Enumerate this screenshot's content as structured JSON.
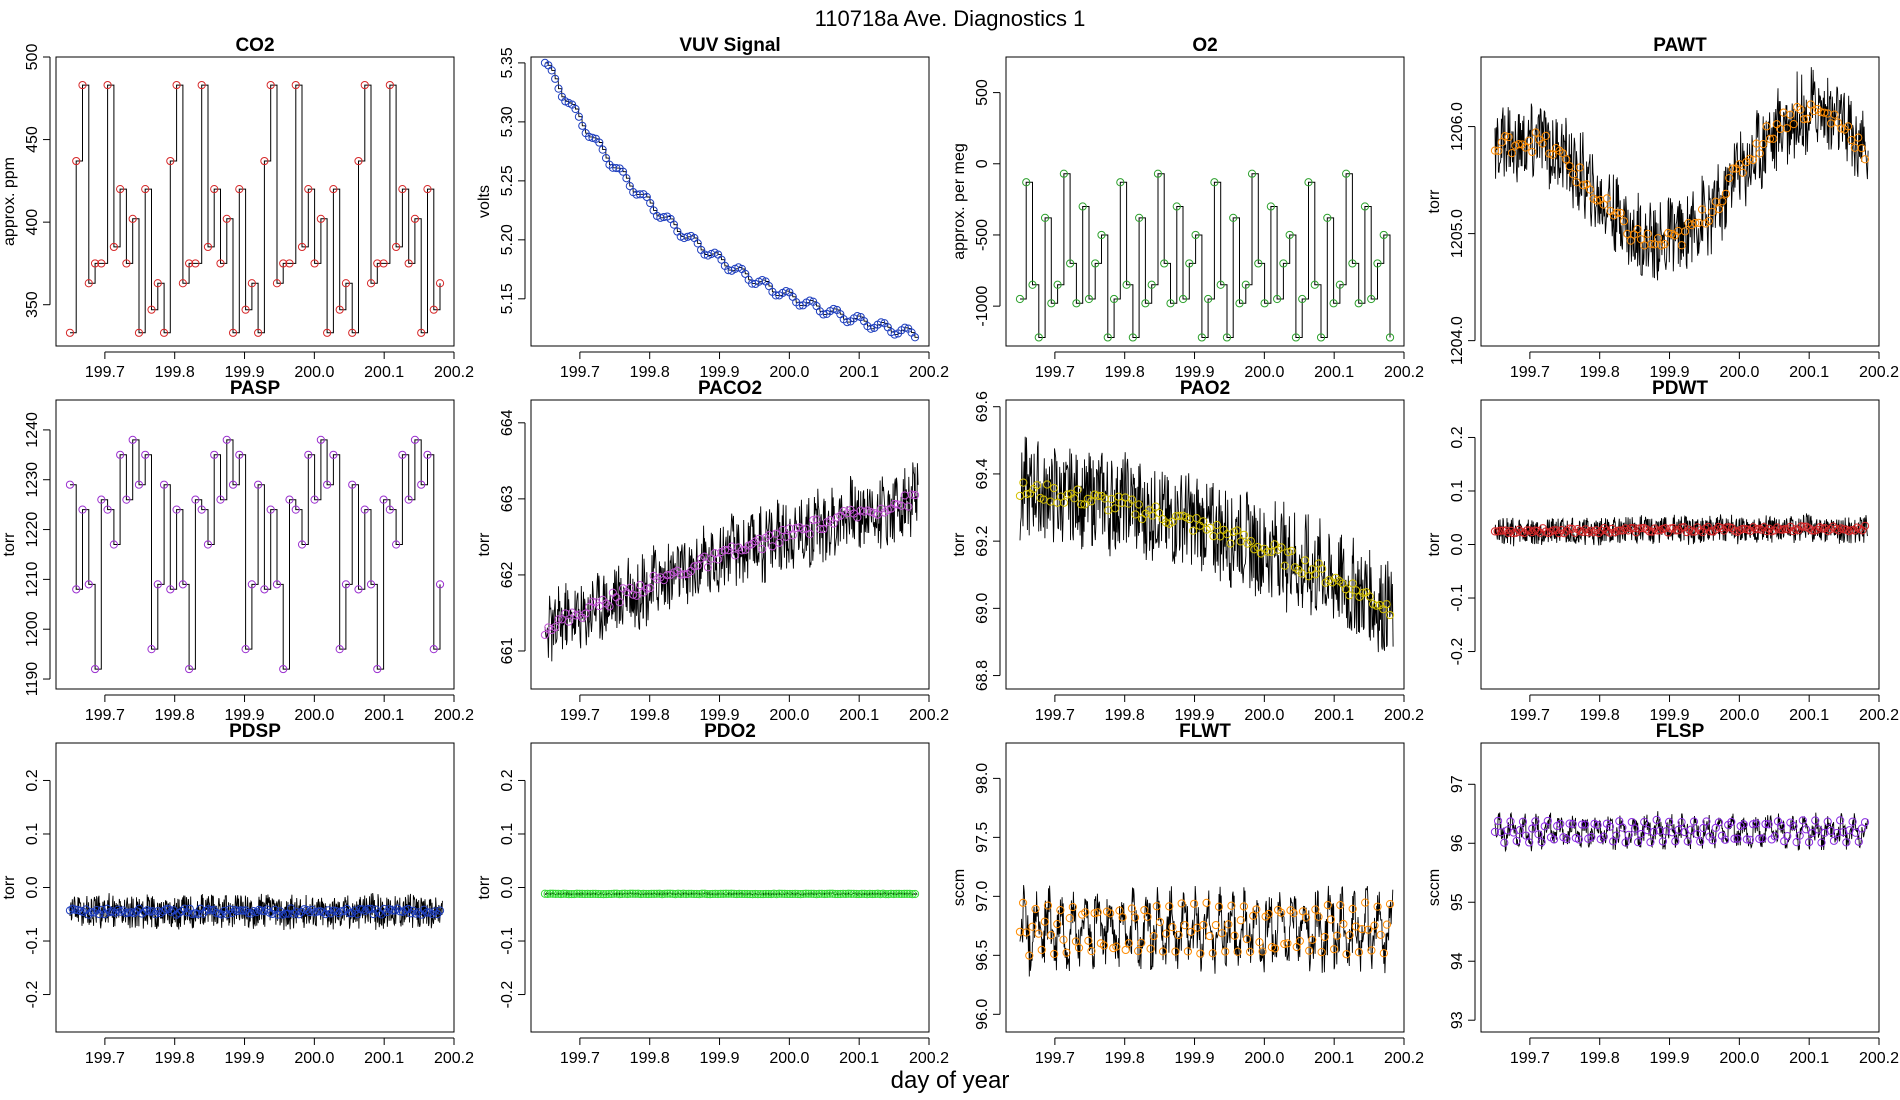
{
  "figure": {
    "main_title": "110718a   Ave. Diagnostics 1",
    "xlabel": "day of year"
  },
  "chart_data": [
    {
      "type": "line",
      "title": "CO2",
      "ylabel": "approx. ppm",
      "xlim": [
        199.63,
        200.2
      ],
      "ylim": [
        325,
        500
      ],
      "yticks": [
        350,
        400,
        450,
        500
      ],
      "ytick_labels": [
        "350",
        "400",
        "450",
        "500"
      ],
      "xticks": [
        199.7,
        199.8,
        199.9,
        200.0,
        200.1,
        200.2
      ],
      "xtick_labels": [
        "199.7",
        "199.8",
        "199.9",
        "200.0",
        "200.1",
        "200.2"
      ],
      "marker_color": "#d62728",
      "pattern": {
        "kind": "steps",
        "levels": [
          333,
          385,
          363,
          402,
          483,
          347,
          375,
          437,
          420,
          375
        ],
        "n": 60
      },
      "series": [
        {
          "name": "CO2",
          "x_start": 199.65,
          "x_end": 200.18
        }
      ]
    },
    {
      "type": "line",
      "title": "VUV Signal",
      "ylabel": "volts",
      "xlim": [
        199.63,
        200.2
      ],
      "ylim": [
        5.11,
        5.355
      ],
      "yticks": [
        5.15,
        5.2,
        5.25,
        5.3,
        5.35
      ],
      "ytick_labels": [
        "5.15",
        "5.20",
        "5.25",
        "5.30",
        "5.35"
      ],
      "xticks": [
        199.7,
        199.8,
        199.9,
        200.0,
        200.1,
        200.2
      ],
      "xtick_labels": [
        "199.7",
        "199.8",
        "199.9",
        "200.0",
        "200.1",
        "200.2"
      ],
      "marker_color": "#1f3fbf",
      "pattern": {
        "kind": "decay",
        "start": 5.35,
        "end": 5.12,
        "rate": 2.2,
        "osc": 0.004,
        "n": 110
      },
      "series": [
        {
          "name": "VUV",
          "x_start": 199.65,
          "x_end": 200.18
        }
      ]
    },
    {
      "type": "line",
      "title": "O2",
      "ylabel": "approx. per meg",
      "xlim": [
        199.63,
        200.2
      ],
      "ylim": [
        -1280,
        750
      ],
      "yticks": [
        -1000,
        -500,
        0,
        500
      ],
      "ytick_labels": [
        "-1000",
        "-500",
        "0",
        "500"
      ],
      "xticks": [
        199.7,
        199.8,
        199.9,
        200.0,
        200.1,
        200.2
      ],
      "xtick_labels": [
        "199.7",
        "199.8",
        "199.9",
        "200.0",
        "200.1",
        "200.2"
      ],
      "marker_color": "#2ca02c",
      "pattern": {
        "kind": "steps",
        "levels": [
          -950,
          -70,
          -1220,
          -300,
          -850,
          -500,
          -980,
          -130,
          -700,
          -380
        ],
        "n": 60
      },
      "series": [
        {
          "name": "O2",
          "x_start": 199.65,
          "x_end": 200.18
        }
      ]
    },
    {
      "type": "line",
      "title": "PAWT",
      "ylabel": "torr",
      "xlim": [
        199.63,
        200.2
      ],
      "ylim": [
        1203.95,
        1206.65
      ],
      "yticks": [
        1204.0,
        1205.0,
        1206.0
      ],
      "ytick_labels": [
        "1204.0",
        "1205.0",
        "1206.0"
      ],
      "xticks": [
        199.7,
        199.8,
        199.9,
        200.0,
        200.1,
        200.2
      ],
      "xtick_labels": [
        "199.7",
        "199.8",
        "199.9",
        "200.0",
        "200.1",
        "200.2"
      ],
      "marker_color": "#ff8c00",
      "pattern": {
        "kind": "wave",
        "base": 1205.3,
        "amp": 0.55,
        "freq": 1.3,
        "phase": 1.0,
        "trend": 0.35,
        "noise": 0.35,
        "n": 110
      },
      "series": [
        {
          "name": "PAWT",
          "x_start": 199.65,
          "x_end": 200.18
        }
      ]
    },
    {
      "type": "line",
      "title": "PASP",
      "ylabel": "torr",
      "xlim": [
        199.63,
        200.2
      ],
      "ylim": [
        1188,
        1246
      ],
      "yticks": [
        1190,
        1200,
        1210,
        1220,
        1230,
        1240
      ],
      "ytick_labels": [
        "1190",
        "1200",
        "1210",
        "1220",
        "1230",
        "1240"
      ],
      "xticks": [
        199.7,
        199.8,
        199.9,
        200.0,
        200.1,
        200.2
      ],
      "xtick_labels": [
        "199.7",
        "199.8",
        "199.9",
        "200.0",
        "200.1",
        "200.2"
      ],
      "marker_color": "#9b30d0",
      "pattern": {
        "kind": "steps",
        "levels": [
          1229,
          1217,
          1209,
          1238,
          1224,
          1196,
          1226,
          1208,
          1235,
          1192
        ],
        "n": 60
      },
      "series": [
        {
          "name": "PASP",
          "x_start": 199.65,
          "x_end": 200.18
        }
      ]
    },
    {
      "type": "line",
      "title": "PACO2",
      "ylabel": "torr",
      "xlim": [
        199.63,
        200.2
      ],
      "ylim": [
        660.5,
        664.3
      ],
      "yticks": [
        661,
        662,
        663,
        664
      ],
      "ytick_labels": [
        "661",
        "662",
        "663",
        "664"
      ],
      "xticks": [
        199.7,
        199.8,
        199.9,
        200.0,
        200.1,
        200.2
      ],
      "xtick_labels": [
        "199.7",
        "199.8",
        "199.9",
        "200.0",
        "200.1",
        "200.2"
      ],
      "marker_color": "#c355d6",
      "pattern": {
        "kind": "trend",
        "start": 661.3,
        "end": 663.0,
        "curv": 0.6,
        "noise": 0.45,
        "n": 110
      },
      "series": [
        {
          "name": "PACO2",
          "x_start": 199.65,
          "x_end": 200.18
        }
      ]
    },
    {
      "type": "line",
      "title": "PAO2",
      "ylabel": "torr",
      "xlim": [
        199.63,
        200.2
      ],
      "ylim": [
        68.76,
        69.62
      ],
      "yticks": [
        68.8,
        69.0,
        69.2,
        69.4,
        69.6
      ],
      "ytick_labels": [
        "68.8",
        "69.0",
        "69.2",
        "69.4",
        "69.6"
      ],
      "xticks": [
        199.7,
        199.8,
        199.9,
        200.0,
        200.1,
        200.2
      ],
      "xtick_labels": [
        "199.7",
        "199.8",
        "199.9",
        "200.0",
        "200.1",
        "200.2"
      ],
      "marker_color": "#d4c000",
      "pattern": {
        "kind": "trend",
        "start": 69.35,
        "end": 69.0,
        "curv": -1.5,
        "noise": 0.14,
        "n": 110
      },
      "series": [
        {
          "name": "PAO2",
          "x_start": 199.65,
          "x_end": 200.18
        }
      ]
    },
    {
      "type": "line",
      "title": "PDWT",
      "ylabel": "torr",
      "xlim": [
        199.63,
        200.2
      ],
      "ylim": [
        -0.27,
        0.27
      ],
      "yticks": [
        -0.2,
        -0.1,
        0.0,
        0.1,
        0.2
      ],
      "ytick_labels": [
        "-0.2",
        "-0.1",
        "0.0",
        "0.1",
        "0.2"
      ],
      "xticks": [
        199.7,
        199.8,
        199.9,
        200.0,
        200.1,
        200.2
      ],
      "xtick_labels": [
        "199.7",
        "199.8",
        "199.9",
        "200.0",
        "200.1",
        "200.2"
      ],
      "marker_color": "#d62728",
      "pattern": {
        "kind": "trend",
        "start": 0.025,
        "end": 0.03,
        "curv": 0,
        "noise": 0.025,
        "n": 140
      },
      "series": [
        {
          "name": "PDWT",
          "x_start": 199.65,
          "x_end": 200.18
        }
      ]
    },
    {
      "type": "line",
      "title": "PDSP",
      "ylabel": "torr",
      "xlim": [
        199.63,
        200.2
      ],
      "ylim": [
        -0.27,
        0.27
      ],
      "yticks": [
        -0.2,
        -0.1,
        0.0,
        0.1,
        0.2
      ],
      "ytick_labels": [
        "-0.2",
        "-0.1",
        "0.0",
        "0.1",
        "0.2"
      ],
      "xticks": [
        199.7,
        199.8,
        199.9,
        200.0,
        200.1,
        200.2
      ],
      "xtick_labels": [
        "199.7",
        "199.8",
        "199.9",
        "200.0",
        "200.1",
        "200.2"
      ],
      "marker_color": "#1f3fbf",
      "pattern": {
        "kind": "trend",
        "start": -0.045,
        "end": -0.045,
        "curv": 0,
        "noise": 0.03,
        "n": 140
      },
      "series": [
        {
          "name": "PDSP",
          "x_start": 199.65,
          "x_end": 200.18
        }
      ]
    },
    {
      "type": "line",
      "title": "PDO2",
      "ylabel": "torr",
      "xlim": [
        199.63,
        200.2
      ],
      "ylim": [
        -0.27,
        0.27
      ],
      "yticks": [
        -0.2,
        -0.1,
        0.0,
        0.1,
        0.2
      ],
      "ytick_labels": [
        "-0.2",
        "-0.1",
        "0.0",
        "0.1",
        "0.2"
      ],
      "xticks": [
        199.7,
        199.8,
        199.9,
        200.0,
        200.1,
        200.2
      ],
      "xtick_labels": [
        "199.7",
        "199.8",
        "199.9",
        "200.0",
        "200.1",
        "200.2"
      ],
      "marker_color": "#33dd33",
      "pattern": {
        "kind": "trend",
        "start": -0.012,
        "end": -0.012,
        "curv": 0,
        "noise": 0.002,
        "n": 140
      },
      "series": [
        {
          "name": "PDO2",
          "x_start": 199.65,
          "x_end": 200.18
        }
      ]
    },
    {
      "type": "line",
      "title": "FLWT",
      "ylabel": "sccm",
      "xlim": [
        199.63,
        200.2
      ],
      "ylim": [
        95.85,
        98.3
      ],
      "yticks": [
        96.0,
        96.5,
        97.0,
        97.5,
        98.0
      ],
      "ytick_labels": [
        "96.0",
        "96.5",
        "97.0",
        "97.5",
        "98.0"
      ],
      "xticks": [
        199.7,
        199.8,
        199.9,
        200.0,
        200.1,
        200.2
      ],
      "xtick_labels": [
        "199.7",
        "199.8",
        "199.9",
        "200.0",
        "200.1",
        "200.2"
      ],
      "marker_color": "#ff8c00",
      "pattern": {
        "kind": "osc",
        "base": 96.72,
        "amp": 0.2,
        "period": 0.0175,
        "noise": 0.18,
        "n": 120
      },
      "series": [
        {
          "name": "FLWT",
          "x_start": 199.65,
          "x_end": 200.18
        }
      ]
    },
    {
      "type": "line",
      "title": "FLSP",
      "ylabel": "sccm",
      "xlim": [
        199.63,
        200.2
      ],
      "ylim": [
        92.8,
        97.7
      ],
      "yticks": [
        93,
        94,
        95,
        96,
        97
      ],
      "ytick_labels": [
        "93",
        "94",
        "95",
        "96",
        "97"
      ],
      "xticks": [
        199.7,
        199.8,
        199.9,
        200.0,
        200.1,
        200.2
      ],
      "xtick_labels": [
        "199.7",
        "199.8",
        "199.9",
        "200.0",
        "200.1",
        "200.2"
      ],
      "marker_color": "#8a2be2",
      "pattern": {
        "kind": "osc",
        "base": 96.2,
        "amp": 0.18,
        "period": 0.0175,
        "noise": 0.15,
        "n": 120
      },
      "series": [
        {
          "name": "FLSP",
          "x_start": 199.65,
          "x_end": 200.18
        }
      ]
    }
  ]
}
